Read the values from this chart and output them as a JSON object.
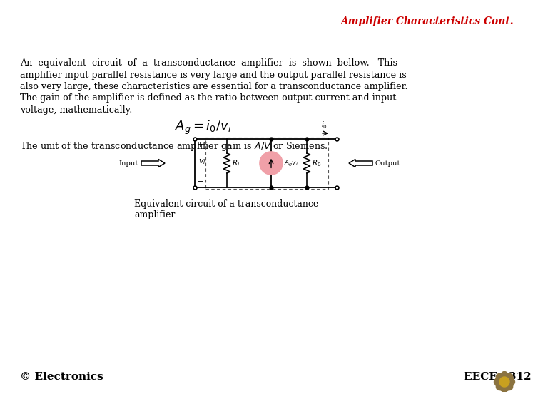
{
  "title": "Amplifier Characteristics Cont.",
  "title_color": "#CC0000",
  "title_fontsize": 10,
  "bg_color": "#FFFFFF",
  "footer_left": "© Electronics",
  "footer_right": "EECE 1312",
  "font_family": "DejaVu Serif"
}
